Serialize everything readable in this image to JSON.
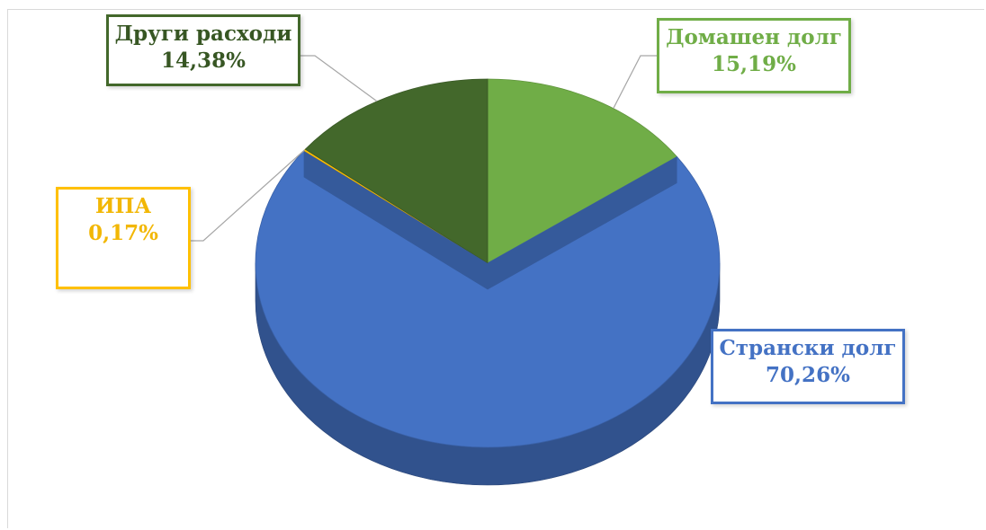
{
  "chart_data": {
    "type": "pie",
    "title": "",
    "style": "3d",
    "legend": "none",
    "slices": [
      {
        "label": "Домашен долг",
        "value": 15.19,
        "display": "15,19%",
        "color": "#70ad47",
        "text_color": "#70ad47"
      },
      {
        "label": "Странски долг",
        "value": 70.26,
        "display": "70,26%",
        "color": "#4472c4",
        "text_color": "#4472c4"
      },
      {
        "label": "ИПА",
        "value": 0.17,
        "display": "0,17%",
        "color": "#ffc000",
        "text_color": "#f2b705"
      },
      {
        "label": "Други расходи",
        "value": 14.38,
        "display": "14,38%",
        "color": "#43682b",
        "text_color": "#375623"
      }
    ]
  }
}
